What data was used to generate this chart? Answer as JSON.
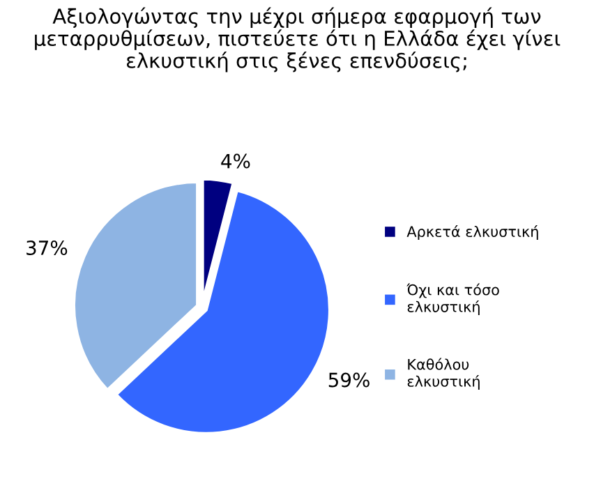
{
  "chart_data": {
    "type": "pie",
    "title": "Αξιολογώντας την μέχρι σήμερα εφαρμογή των\nμεταρρυθμίσεων, πιστεύετε ότι η Ελλάδα έχει γίνει\nελκυστική στις ξένες επενδύσεις;",
    "categories": [
      "Αρκετά ελκυστική",
      "Όχι και τόσο\nελκυστική",
      "Καθόλου\nελκυστική"
    ],
    "values": [
      4,
      59,
      37
    ],
    "colors": [
      "#000080",
      "#3366ff",
      "#8eb4e3"
    ],
    "value_labels": [
      "4%",
      "59%",
      "37%"
    ],
    "legend": "right"
  }
}
